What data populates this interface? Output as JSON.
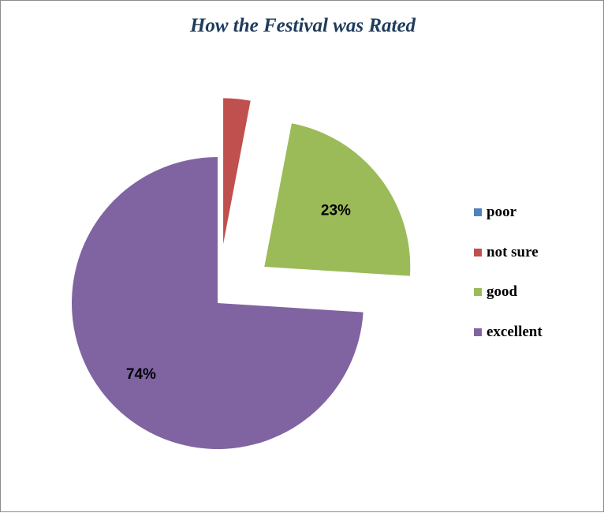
{
  "chart_data": {
    "type": "pie",
    "title": "How the Festival was Rated",
    "slices": [
      {
        "label": "poor",
        "value": 0,
        "color": "#4f81bd",
        "data_label": ""
      },
      {
        "label": "not sure",
        "value": 3,
        "color": "#c0504d",
        "data_label": ""
      },
      {
        "label": "good",
        "value": 23,
        "color": "#9bbb59",
        "data_label": "23%"
      },
      {
        "label": "excellent",
        "value": 74,
        "color": "#8064a2",
        "data_label": "74%"
      }
    ],
    "legend_position": "right",
    "exploded": [
      "not sure",
      "good"
    ]
  }
}
